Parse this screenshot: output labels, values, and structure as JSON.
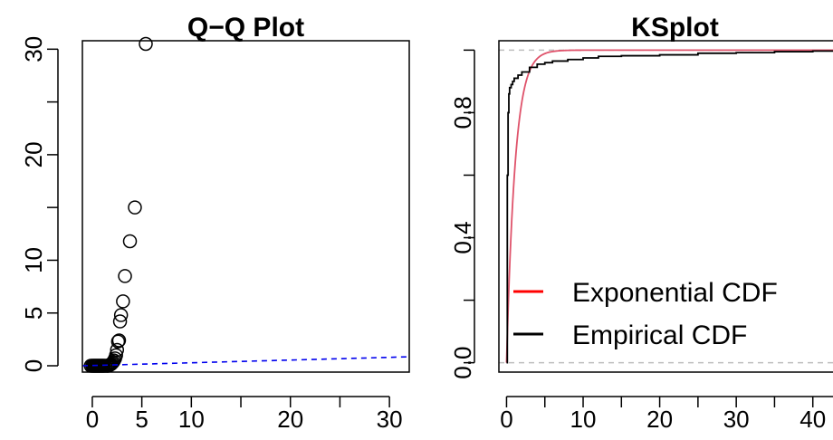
{
  "chart_data": [
    {
      "type": "scatter",
      "title": "Q−Q Plot",
      "xlabel": "",
      "ylabel": "",
      "xlim": [
        -1,
        32
      ],
      "ylim": [
        -0.6,
        30.8
      ],
      "x_ticks": [
        0,
        5,
        10,
        15,
        20,
        25,
        30
      ],
      "x_tick_labels": [
        "0",
        "5",
        "10",
        "",
        "20",
        "",
        "30"
      ],
      "y_ticks": [
        0,
        5,
        10,
        15,
        20,
        25,
        30
      ],
      "y_tick_labels": [
        "0",
        "5",
        "10",
        "",
        "20",
        "",
        "30"
      ],
      "grid": false,
      "series": [
        {
          "marker": "open-circle",
          "color": "#000000",
          "x": [
            -0.15,
            0.0,
            0.1,
            0.2,
            0.3,
            0.4,
            0.5,
            0.6,
            0.7,
            0.8,
            0.9,
            1.0,
            1.1,
            1.2,
            1.35,
            1.5,
            1.6,
            1.7,
            1.8,
            1.9,
            2.0,
            2.1,
            2.2,
            2.3,
            2.4,
            2.5,
            2.6,
            2.7,
            2.8,
            2.9,
            3.1,
            3.3,
            3.8,
            4.3,
            5.4
          ],
          "y": [
            0.0,
            0.0,
            0.0,
            0.0,
            0.0,
            0.0,
            0.0,
            0.0,
            0.0,
            0.0,
            0.0,
            0.0,
            0.0,
            0.0,
            0.0,
            0.0,
            0.0,
            0.05,
            0.1,
            0.15,
            0.25,
            0.35,
            0.5,
            0.7,
            1.0,
            1.5,
            2.3,
            2.4,
            4.2,
            4.8,
            6.1,
            8.5,
            11.8,
            15.0,
            30.5
          ]
        },
        {
          "type": "line",
          "style": "dashed",
          "color": "#0000ee",
          "x": [
            -1,
            32
          ],
          "y": [
            0.0,
            0.85
          ]
        }
      ]
    },
    {
      "type": "line",
      "title": "KSplot",
      "xlabel": "",
      "ylabel": "",
      "xlim": [
        -1,
        45
      ],
      "ylim": [
        -0.03,
        1.03
      ],
      "x_ticks": [
        0,
        5,
        10,
        15,
        20,
        25,
        30,
        35,
        40,
        45
      ],
      "x_tick_labels": [
        "0",
        "",
        "10",
        "",
        "20",
        "",
        "30",
        "",
        "40",
        ""
      ],
      "y_ticks": [
        0.0,
        0.2,
        0.4,
        0.6,
        0.8,
        1.0
      ],
      "y_tick_labels": [
        "0.0",
        "",
        "0.4",
        "",
        "0.8",
        ""
      ],
      "grid": false,
      "reference_lines": [
        0.0,
        1.0
      ],
      "reference_color": "#bebebe",
      "legend_position": "bottom-right",
      "series": [
        {
          "name": "Exponential CDF",
          "kind": "curve",
          "color": "#df536b",
          "rate": 0.9
        },
        {
          "name": "Empirical CDF",
          "kind": "step",
          "color": "#000000",
          "x": [
            0,
            0.1,
            0.2,
            0.3,
            0.4,
            0.6,
            0.8,
            1.0,
            1.5,
            2.0,
            3.0,
            4.0,
            5.0,
            6.0,
            8.0,
            10.0,
            12.0,
            15.0,
            20.0,
            25.0,
            30.0,
            35.0,
            40.0,
            45.0
          ],
          "y": [
            0.0,
            0.6,
            0.8,
            0.86,
            0.88,
            0.89,
            0.9,
            0.91,
            0.92,
            0.93,
            0.945,
            0.955,
            0.96,
            0.965,
            0.97,
            0.975,
            0.98,
            0.982,
            0.985,
            0.99,
            0.992,
            0.995,
            0.997,
            1.0
          ]
        }
      ],
      "legend": [
        {
          "label": "Exponential CDF",
          "color": "#ff0000"
        },
        {
          "label": "Empirical CDF",
          "color": "#000000"
        }
      ]
    }
  ]
}
